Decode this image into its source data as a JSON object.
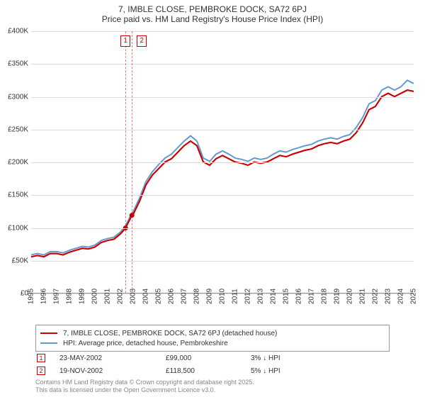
{
  "title": "7, IMBLE CLOSE, PEMBROKE DOCK, SA72 6PJ",
  "subtitle": "Price paid vs. HM Land Registry's House Price Index (HPI)",
  "chart": {
    "type": "line",
    "background_color": "#ffffff",
    "grid_color": "#dddddd",
    "axis_color": "#999999",
    "label_fontsize": 10,
    "ylim": [
      0,
      400000
    ],
    "ytick_step": 50000,
    "yticks": [
      "£0",
      "£50K",
      "£100K",
      "£150K",
      "£200K",
      "£250K",
      "£300K",
      "£350K",
      "£400K"
    ],
    "xlim": [
      1995,
      2025
    ],
    "xticks": [
      "1995",
      "1996",
      "1997",
      "1998",
      "1999",
      "2000",
      "2001",
      "2002",
      "2003",
      "2004",
      "2005",
      "2006",
      "2007",
      "2008",
      "2009",
      "2010",
      "2011",
      "2012",
      "2013",
      "2014",
      "2015",
      "2016",
      "2017",
      "2018",
      "2019",
      "2020",
      "2021",
      "2022",
      "2023",
      "2024",
      "2025"
    ],
    "series": [
      {
        "name": "7, IMBLE CLOSE, PEMBROKE DOCK, SA72 6PJ (detached house)",
        "color": "#cc0000",
        "line_width": 2,
        "data": [
          [
            1995,
            55000
          ],
          [
            1995.5,
            57000
          ],
          [
            1996,
            55000
          ],
          [
            1996.5,
            60000
          ],
          [
            1997,
            60000
          ],
          [
            1997.5,
            58000
          ],
          [
            1998,
            62000
          ],
          [
            1998.5,
            65000
          ],
          [
            1999,
            68000
          ],
          [
            1999.5,
            67000
          ],
          [
            2000,
            70000
          ],
          [
            2000.5,
            77000
          ],
          [
            2001,
            80000
          ],
          [
            2001.5,
            82000
          ],
          [
            2002,
            90000
          ],
          [
            2002.4,
            99000
          ],
          [
            2002.9,
            118500
          ],
          [
            2003,
            120000
          ],
          [
            2003.5,
            140000
          ],
          [
            2004,
            165000
          ],
          [
            2004.5,
            180000
          ],
          [
            2005,
            190000
          ],
          [
            2005.5,
            200000
          ],
          [
            2006,
            205000
          ],
          [
            2006.5,
            215000
          ],
          [
            2007,
            225000
          ],
          [
            2007.5,
            232000
          ],
          [
            2008,
            225000
          ],
          [
            2008.5,
            200000
          ],
          [
            2009,
            195000
          ],
          [
            2009.5,
            205000
          ],
          [
            2010,
            210000
          ],
          [
            2010.5,
            205000
          ],
          [
            2011,
            200000
          ],
          [
            2011.5,
            198000
          ],
          [
            2012,
            195000
          ],
          [
            2012.5,
            200000
          ],
          [
            2013,
            198000
          ],
          [
            2013.5,
            200000
          ],
          [
            2014,
            205000
          ],
          [
            2014.5,
            210000
          ],
          [
            2015,
            208000
          ],
          [
            2015.5,
            212000
          ],
          [
            2016,
            215000
          ],
          [
            2016.5,
            218000
          ],
          [
            2017,
            220000
          ],
          [
            2017.5,
            225000
          ],
          [
            2018,
            228000
          ],
          [
            2018.5,
            230000
          ],
          [
            2019,
            228000
          ],
          [
            2019.5,
            232000
          ],
          [
            2020,
            235000
          ],
          [
            2020.5,
            245000
          ],
          [
            2021,
            260000
          ],
          [
            2021.5,
            280000
          ],
          [
            2022,
            285000
          ],
          [
            2022.5,
            300000
          ],
          [
            2023,
            305000
          ],
          [
            2023.5,
            300000
          ],
          [
            2024,
            305000
          ],
          [
            2024.5,
            310000
          ],
          [
            2025,
            308000
          ]
        ]
      },
      {
        "name": "HPI: Average price, detached house, Pembrokeshire",
        "color": "#6699cc",
        "line_width": 2,
        "data": [
          [
            1995,
            58000
          ],
          [
            1995.5,
            60000
          ],
          [
            1996,
            58000
          ],
          [
            1996.5,
            63000
          ],
          [
            1997,
            63000
          ],
          [
            1997.5,
            61000
          ],
          [
            1998,
            65000
          ],
          [
            1998.5,
            68000
          ],
          [
            1999,
            71000
          ],
          [
            1999.5,
            70000
          ],
          [
            2000,
            73000
          ],
          [
            2000.5,
            80000
          ],
          [
            2001,
            83000
          ],
          [
            2001.5,
            85000
          ],
          [
            2002,
            93000
          ],
          [
            2002.4,
            102000
          ],
          [
            2002.9,
            122000
          ],
          [
            2003,
            124000
          ],
          [
            2003.5,
            145000
          ],
          [
            2004,
            170000
          ],
          [
            2004.5,
            185000
          ],
          [
            2005,
            196000
          ],
          [
            2005.5,
            206000
          ],
          [
            2006,
            212000
          ],
          [
            2006.5,
            222000
          ],
          [
            2007,
            232000
          ],
          [
            2007.5,
            240000
          ],
          [
            2008,
            232000
          ],
          [
            2008.5,
            206000
          ],
          [
            2009,
            201000
          ],
          [
            2009.5,
            212000
          ],
          [
            2010,
            217000
          ],
          [
            2010.5,
            212000
          ],
          [
            2011,
            206000
          ],
          [
            2011.5,
            204000
          ],
          [
            2012,
            201000
          ],
          [
            2012.5,
            206000
          ],
          [
            2013,
            204000
          ],
          [
            2013.5,
            206000
          ],
          [
            2014,
            212000
          ],
          [
            2014.5,
            217000
          ],
          [
            2015,
            215000
          ],
          [
            2015.5,
            219000
          ],
          [
            2016,
            222000
          ],
          [
            2016.5,
            225000
          ],
          [
            2017,
            227000
          ],
          [
            2017.5,
            232000
          ],
          [
            2018,
            235000
          ],
          [
            2018.5,
            237000
          ],
          [
            2019,
            235000
          ],
          [
            2019.5,
            239000
          ],
          [
            2020,
            242000
          ],
          [
            2020.5,
            253000
          ],
          [
            2021,
            268000
          ],
          [
            2021.5,
            289000
          ],
          [
            2022,
            294000
          ],
          [
            2022.5,
            310000
          ],
          [
            2023,
            315000
          ],
          [
            2023.5,
            310000
          ],
          [
            2024,
            315000
          ],
          [
            2024.5,
            325000
          ],
          [
            2025,
            320000
          ]
        ]
      }
    ],
    "markers": [
      {
        "label": "1",
        "x": 2002.4,
        "color": "#cc0000"
      },
      {
        "label": "2",
        "x": 2002.9,
        "color": "#cc0000"
      }
    ]
  },
  "legend": {
    "items": [
      {
        "label": "7, IMBLE CLOSE, PEMBROKE DOCK, SA72 6PJ (detached house)",
        "color": "#cc0000"
      },
      {
        "label": "HPI: Average price, detached house, Pembrokeshire",
        "color": "#6699cc"
      }
    ]
  },
  "events": [
    {
      "marker": "1",
      "date": "23-MAY-2002",
      "price": "£99,000",
      "delta": "3% ↓ HPI",
      "marker_color": "#cc0000"
    },
    {
      "marker": "2",
      "date": "19-NOV-2002",
      "price": "£118,500",
      "delta": "5% ↓ HPI",
      "marker_color": "#cc0000"
    }
  ],
  "footer": {
    "line1": "Contains HM Land Registry data © Crown copyright and database right 2025.",
    "line2": "This data is licensed under the Open Government Licence v3.0."
  }
}
